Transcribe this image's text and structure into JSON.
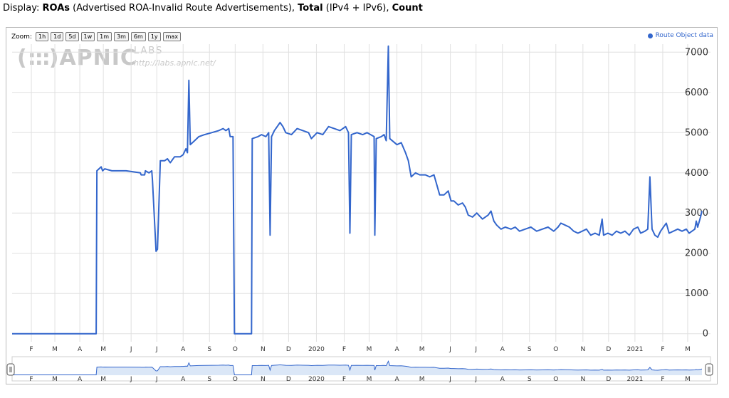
{
  "header": {
    "prefix": "Display: ",
    "roas": "ROAs",
    "roas_desc": " (Advertised ROA-Invalid Route Advertisements), ",
    "total": "Total",
    "total_desc": " (IPv4 + IPv6), ",
    "count": "Count"
  },
  "zoom": {
    "label": "Zoom:",
    "buttons": [
      "1h",
      "1d",
      "5d",
      "1w",
      "1m",
      "3m",
      "6m",
      "1y",
      "max"
    ]
  },
  "logo": {
    "name": "APNIC",
    "labs": "LABS",
    "url": "http://labs.apnic.net/"
  },
  "colors": {
    "line": "#3366cc",
    "fill": "#dbe7f7",
    "grid": "#e0e0e0"
  },
  "chart_data": {
    "type": "line",
    "series": [
      {
        "name": "Route Object data",
        "points": [
          [
            0,
            0
          ],
          [
            118,
            0
          ],
          [
            119,
            4050
          ],
          [
            122,
            4100
          ],
          [
            125,
            4150
          ],
          [
            127,
            4050
          ],
          [
            130,
            4100
          ],
          [
            140,
            4050
          ],
          [
            160,
            4050
          ],
          [
            180,
            4000
          ],
          [
            181,
            3950
          ],
          [
            186,
            3950
          ],
          [
            187,
            4050
          ],
          [
            192,
            4000
          ],
          [
            196,
            4050
          ],
          [
            197,
            3800
          ],
          [
            202,
            2050
          ],
          [
            204,
            2100
          ],
          [
            208,
            4300
          ],
          [
            214,
            4300
          ],
          [
            218,
            4350
          ],
          [
            222,
            4250
          ],
          [
            228,
            4400
          ],
          [
            236,
            4400
          ],
          [
            240,
            4450
          ],
          [
            244,
            4600
          ],
          [
            246,
            4500
          ],
          [
            248,
            6300
          ],
          [
            250,
            4700
          ],
          [
            256,
            4800
          ],
          [
            262,
            4900
          ],
          [
            270,
            4950
          ],
          [
            280,
            5000
          ],
          [
            290,
            5050
          ],
          [
            296,
            5100
          ],
          [
            300,
            5050
          ],
          [
            304,
            5100
          ],
          [
            306,
            4900
          ],
          [
            310,
            4900
          ],
          [
            312,
            0
          ],
          [
            336,
            0
          ],
          [
            337,
            4850
          ],
          [
            345,
            4900
          ],
          [
            350,
            4950
          ],
          [
            356,
            4900
          ],
          [
            360,
            5000
          ],
          [
            362,
            2450
          ],
          [
            364,
            4900
          ],
          [
            368,
            5050
          ],
          [
            372,
            5150
          ],
          [
            376,
            5250
          ],
          [
            380,
            5150
          ],
          [
            384,
            5000
          ],
          [
            392,
            4950
          ],
          [
            400,
            5100
          ],
          [
            408,
            5050
          ],
          [
            416,
            5000
          ],
          [
            420,
            4850
          ],
          [
            428,
            5000
          ],
          [
            436,
            4950
          ],
          [
            444,
            5150
          ],
          [
            452,
            5100
          ],
          [
            460,
            5050
          ],
          [
            468,
            5150
          ],
          [
            472,
            5000
          ],
          [
            474,
            2500
          ],
          [
            476,
            4950
          ],
          [
            484,
            5000
          ],
          [
            492,
            4950
          ],
          [
            498,
            5000
          ],
          [
            508,
            4900
          ],
          [
            509,
            2450
          ],
          [
            511,
            4850
          ],
          [
            518,
            4900
          ],
          [
            522,
            4950
          ],
          [
            525,
            4800
          ],
          [
            528,
            7150
          ],
          [
            530,
            4850
          ],
          [
            540,
            4700
          ],
          [
            546,
            4750
          ],
          [
            552,
            4500
          ],
          [
            556,
            4300
          ],
          [
            560,
            3900
          ],
          [
            566,
            4000
          ],
          [
            572,
            3950
          ],
          [
            580,
            3950
          ],
          [
            586,
            3900
          ],
          [
            592,
            3950
          ],
          [
            596,
            3700
          ],
          [
            600,
            3450
          ],
          [
            606,
            3450
          ],
          [
            612,
            3550
          ],
          [
            616,
            3300
          ],
          [
            620,
            3300
          ],
          [
            626,
            3200
          ],
          [
            632,
            3250
          ],
          [
            636,
            3150
          ],
          [
            640,
            2950
          ],
          [
            646,
            2900
          ],
          [
            652,
            3000
          ],
          [
            660,
            2850
          ],
          [
            668,
            2950
          ],
          [
            672,
            3050
          ],
          [
            676,
            2800
          ],
          [
            680,
            2700
          ],
          [
            686,
            2600
          ],
          [
            692,
            2650
          ],
          [
            700,
            2600
          ],
          [
            706,
            2650
          ],
          [
            712,
            2550
          ],
          [
            720,
            2600
          ],
          [
            728,
            2650
          ],
          [
            736,
            2550
          ],
          [
            744,
            2600
          ],
          [
            752,
            2650
          ],
          [
            760,
            2550
          ],
          [
            766,
            2650
          ],
          [
            770,
            2750
          ],
          [
            776,
            2700
          ],
          [
            782,
            2650
          ],
          [
            788,
            2550
          ],
          [
            794,
            2500
          ],
          [
            800,
            2550
          ],
          [
            806,
            2600
          ],
          [
            812,
            2450
          ],
          [
            818,
            2500
          ],
          [
            824,
            2450
          ],
          [
            828,
            2850
          ],
          [
            830,
            2450
          ],
          [
            836,
            2500
          ],
          [
            842,
            2450
          ],
          [
            848,
            2550
          ],
          [
            854,
            2500
          ],
          [
            860,
            2550
          ],
          [
            866,
            2450
          ],
          [
            872,
            2600
          ],
          [
            878,
            2650
          ],
          [
            882,
            2500
          ],
          [
            888,
            2550
          ],
          [
            892,
            2600
          ],
          [
            895,
            3900
          ],
          [
            898,
            2600
          ],
          [
            902,
            2450
          ],
          [
            906,
            2400
          ],
          [
            910,
            2550
          ],
          [
            914,
            2650
          ],
          [
            918,
            2750
          ],
          [
            922,
            2500
          ],
          [
            928,
            2550
          ],
          [
            934,
            2600
          ],
          [
            940,
            2550
          ],
          [
            946,
            2600
          ],
          [
            950,
            2500
          ],
          [
            954,
            2550
          ],
          [
            958,
            2600
          ],
          [
            960,
            2800
          ],
          [
            962,
            2650
          ],
          [
            966,
            2900
          ],
          [
            968,
            3050
          ]
        ]
      }
    ],
    "x_ticks": [
      {
        "x": 27,
        "label": "F"
      },
      {
        "x": 60,
        "label": "M"
      },
      {
        "x": 95,
        "label": "A"
      },
      {
        "x": 128,
        "label": "M"
      },
      {
        "x": 167,
        "label": "J"
      },
      {
        "x": 203,
        "label": "J"
      },
      {
        "x": 240,
        "label": "A"
      },
      {
        "x": 277,
        "label": "S"
      },
      {
        "x": 313,
        "label": "O"
      },
      {
        "x": 352,
        "label": "N"
      },
      {
        "x": 388,
        "label": "D"
      },
      {
        "x": 427,
        "label": "2020"
      },
      {
        "x": 466,
        "label": "F"
      },
      {
        "x": 501,
        "label": "M"
      },
      {
        "x": 540,
        "label": "A"
      },
      {
        "x": 575,
        "label": "M"
      },
      {
        "x": 615,
        "label": "J"
      },
      {
        "x": 651,
        "label": "J"
      },
      {
        "x": 688,
        "label": "A"
      },
      {
        "x": 726,
        "label": "S"
      },
      {
        "x": 763,
        "label": "O"
      },
      {
        "x": 801,
        "label": "N"
      },
      {
        "x": 837,
        "label": "D"
      },
      {
        "x": 874,
        "label": "2021"
      },
      {
        "x": 913,
        "label": "F"
      },
      {
        "x": 948,
        "label": "M"
      }
    ],
    "y_ticks": [
      0,
      1000,
      2000,
      3000,
      4000,
      5000,
      6000,
      7000
    ],
    "ylim": [
      -200,
      7200
    ],
    "xlim": [
      0,
      980
    ]
  }
}
